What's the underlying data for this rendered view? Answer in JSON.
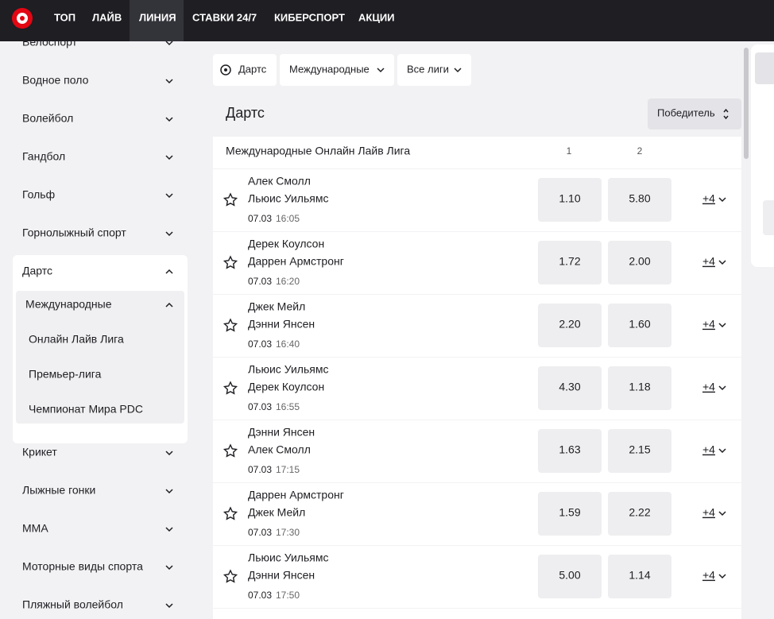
{
  "nav": {
    "items": [
      "ТОП",
      "ЛАЙВ",
      "ЛИНИЯ",
      "СТАВКИ 24/7",
      "КИБЕРСПОРТ",
      "АКЦИИ"
    ],
    "active": 2
  },
  "sidebar": {
    "items": [
      {
        "name": "Велоспорт"
      },
      {
        "name": "Водное поло"
      },
      {
        "name": "Волейбол"
      },
      {
        "name": "Гандбол"
      },
      {
        "name": "Гольф"
      },
      {
        "name": "Горнолыжный спорт"
      },
      {
        "name": "Дартс",
        "groups": [
          {
            "name": "Международные",
            "leagues": [
              "Онлайн Лайв Лига",
              "Премьер-лига",
              "Чемпионат Мира PDC"
            ]
          }
        ]
      },
      {
        "name": "Крикет"
      },
      {
        "name": "Лыжные гонки"
      },
      {
        "name": "ММА"
      },
      {
        "name": "Моторные виды спорта"
      },
      {
        "name": "Пляжный волейбол"
      }
    ]
  },
  "filters": [
    "Дартс",
    "Международные",
    "Все лиги"
  ],
  "heading": "Дартс",
  "market": "Победитель",
  "league": {
    "name": "Международные Онлайн Лайв Лига",
    "columns": [
      "1",
      "2"
    ]
  },
  "events": [
    {
      "team1": "Алек Смолл",
      "team2": "Льюис Уильямс",
      "date": "07.03",
      "time": "16:05",
      "odds": [
        "1.10",
        "5.80"
      ],
      "more": "+4"
    },
    {
      "team1": "Дерек Коулсон",
      "team2": "Даррен Армстронг",
      "date": "07.03",
      "time": "16:20",
      "odds": [
        "1.72",
        "2.00"
      ],
      "more": "+4"
    },
    {
      "team1": "Джек Мейл",
      "team2": "Дэнни Янсен",
      "date": "07.03",
      "time": "16:40",
      "odds": [
        "2.20",
        "1.60"
      ],
      "more": "+4"
    },
    {
      "team1": "Льюис Уильямс",
      "team2": "Дерек Коулсон",
      "date": "07.03",
      "time": "16:55",
      "odds": [
        "4.30",
        "1.18"
      ],
      "more": "+4"
    },
    {
      "team1": "Дэнни Янсен",
      "team2": "Алек Смолл",
      "date": "07.03",
      "time": "17:15",
      "odds": [
        "1.63",
        "2.15"
      ],
      "more": "+4"
    },
    {
      "team1": "Даррен Армстронг",
      "team2": "Джек Мейл",
      "date": "07.03",
      "time": "17:30",
      "odds": [
        "1.59",
        "2.22"
      ],
      "more": "+4"
    },
    {
      "team1": "Льюис Уильямс",
      "team2": "Дэнни Янсен",
      "date": "07.03",
      "time": "17:50",
      "odds": [
        "5.00",
        "1.14"
      ],
      "more": "+4"
    }
  ]
}
